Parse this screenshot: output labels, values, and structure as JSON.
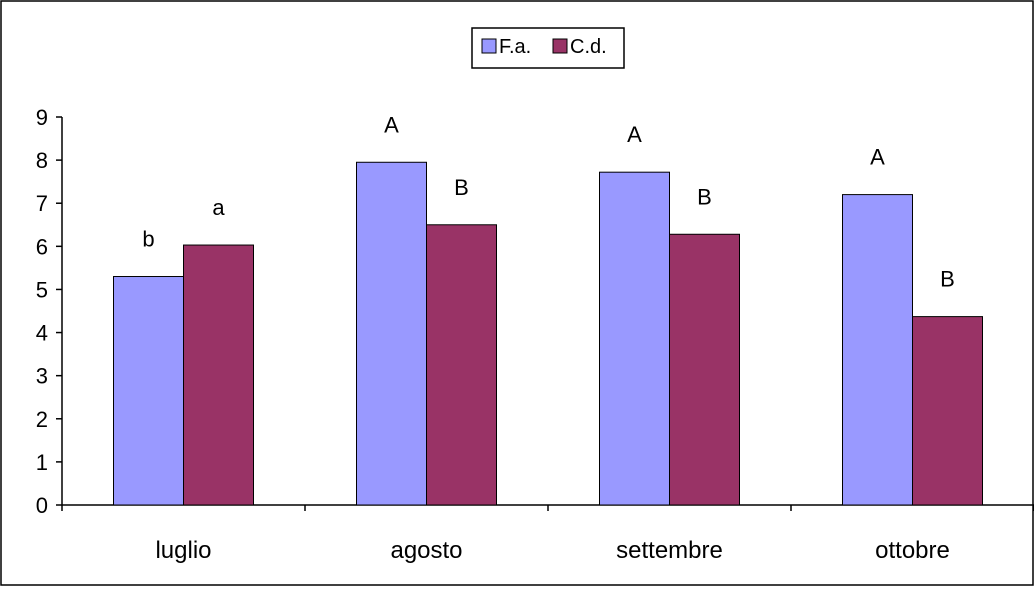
{
  "chart_data": {
    "type": "bar",
    "categories": [
      "luglio",
      "agosto",
      "settembre",
      "ottobre"
    ],
    "series": [
      {
        "name": "F.a.",
        "color": "#9999ff",
        "values": [
          5.3,
          7.95,
          7.72,
          7.2
        ],
        "labels": [
          "b",
          "A",
          "A",
          "A"
        ]
      },
      {
        "name": "C.d.",
        "color": "#993366",
        "values": [
          6.03,
          6.5,
          6.28,
          4.37
        ],
        "labels": [
          "a",
          "B",
          "B",
          "B"
        ]
      }
    ],
    "yticks": [
      "0",
      "1",
      "2",
      "3",
      "4",
      "5",
      "6",
      "7",
      "8",
      "9"
    ],
    "ylim": [
      0,
      9
    ],
    "grid": false,
    "legend_position": "top-center"
  }
}
